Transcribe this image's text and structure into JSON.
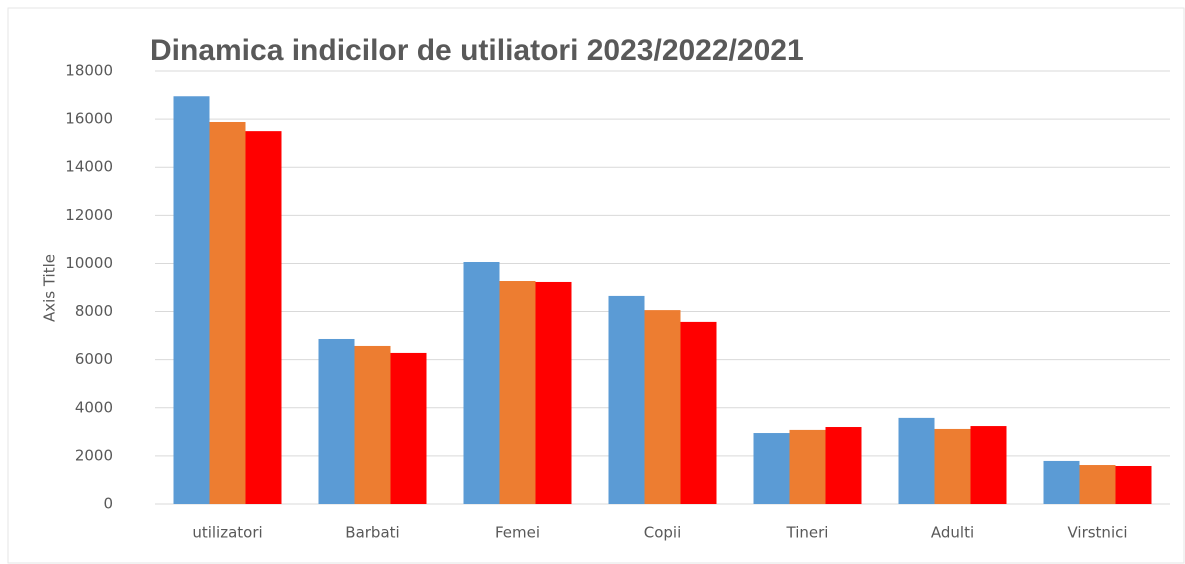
{
  "chart_data": {
    "type": "bar",
    "title": "Dinamica  indicilor de utiliatori 2023/2022/2021",
    "y_label": "Axis Title",
    "categories": [
      "utilizatori",
      "Barbati",
      "Femei",
      "Copii",
      "Tineri",
      "Adulti",
      "Virstnici"
    ],
    "series": [
      {
        "color": "#5b9bd5",
        "values": [
          16950,
          6860,
          10060,
          8650,
          2950,
          3580,
          1790
        ]
      },
      {
        "color": "#ed7d31",
        "values": [
          15880,
          6570,
          9270,
          8060,
          3080,
          3120,
          1620
        ]
      },
      {
        "color": "#ff0000",
        "values": [
          15500,
          6280,
          9230,
          7570,
          3200,
          3240,
          1580
        ]
      }
    ],
    "ylim": [
      0,
      18000
    ],
    "yticks": [
      0,
      2000,
      4000,
      6000,
      8000,
      10000,
      12000,
      14000,
      16000,
      18000
    ],
    "grid": true
  }
}
